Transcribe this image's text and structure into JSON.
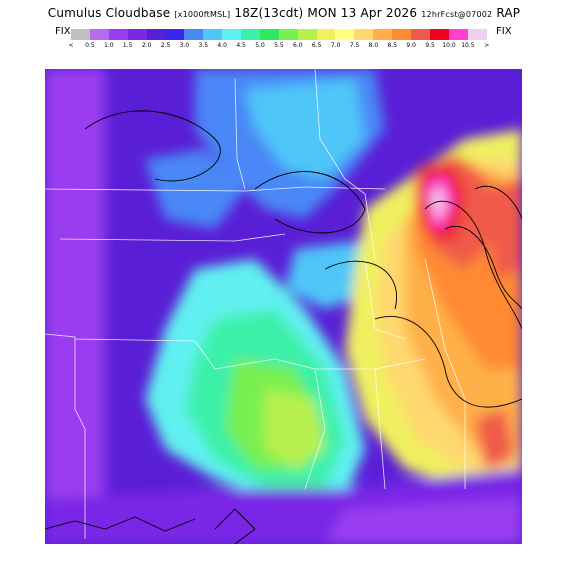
{
  "title": {
    "main": "Cumulus Cloudbase",
    "units": "[x1000ftMSL]",
    "valid": "18Z(13cdt) MON 13 Apr 2026",
    "forecast": "12hrFcst@07002",
    "model": "RAP"
  },
  "colorbar": {
    "left_label": "FIX",
    "right_label": "FIX",
    "less_symbol": "<",
    "greater_symbol": ">",
    "ticks": [
      "0.5",
      "1.0",
      "1.5",
      "2.0",
      "2.5",
      "3.0",
      "3.5",
      "4.0",
      "4.5",
      "5.0",
      "5.5",
      "6.0",
      "6.5",
      "7.0",
      "7.5",
      "8.0",
      "8.5",
      "9.0",
      "9.5",
      "10.0",
      "10.5"
    ],
    "colors": [
      "#c0c0c0",
      "#b46cf0",
      "#9a3cf0",
      "#7a28e6",
      "#5a1ed6",
      "#3a24ee",
      "#4a88f6",
      "#50c6f8",
      "#60f0f0",
      "#3cf0a8",
      "#30e860",
      "#78f050",
      "#b8f050",
      "#f0f060",
      "#ffff80",
      "#ffd870",
      "#ffb048",
      "#ff8a30",
      "#f05a4a",
      "#f00020",
      "#ff40d0",
      "#f0d0f0"
    ]
  },
  "map": {
    "description_colors": {
      "low_base": "#7a28e6",
      "mid_base": "#60f0f0",
      "high_base": "#ffd870",
      "highest_base": "#f00020"
    }
  }
}
